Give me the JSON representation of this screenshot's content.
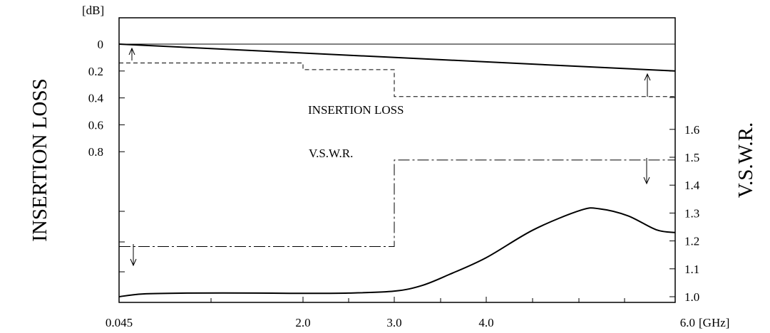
{
  "chart_data": {
    "type": "line",
    "left_axis": {
      "title": "INSERTION LOSS",
      "unit": "[dB]",
      "range": [
        0,
        0.8
      ],
      "ticks": [
        {
          "value": 0,
          "label": "0"
        },
        {
          "value": 0.2,
          "label": "0.2"
        },
        {
          "value": 0.4,
          "label": "0.4"
        },
        {
          "value": 0.6,
          "label": "0.6"
        },
        {
          "value": 0.8,
          "label": "0.8"
        }
      ]
    },
    "right_axis": {
      "title": "V.S.W.R.",
      "range": [
        1.0,
        1.6
      ],
      "ticks": [
        {
          "value": 1.6,
          "label": "1.6"
        },
        {
          "value": 1.5,
          "label": "1.5"
        },
        {
          "value": 1.4,
          "label": "1.4"
        },
        {
          "value": 1.3,
          "label": "1.3"
        },
        {
          "value": 1.2,
          "label": "1.2"
        },
        {
          "value": 1.1,
          "label": "1.1"
        },
        {
          "value": 1.0,
          "label": "1.0"
        }
      ]
    },
    "x_axis": {
      "unit": "[GHz]",
      "range": [
        0.045,
        6.0
      ],
      "ticks": [
        {
          "value": 0.045,
          "label": "0.045"
        },
        {
          "value": 2.0,
          "label": "2.0"
        },
        {
          "value": 3.0,
          "label": "3.0"
        },
        {
          "value": 4.0,
          "label": "4.0"
        },
        {
          "value": 6.0,
          "label": "6.0"
        }
      ]
    },
    "labels": {
      "insertion_loss": "INSERTION LOSS",
      "vswr": "V.S.W.R."
    },
    "series": [
      {
        "axis": "left",
        "style": "solid",
        "x": [
          0.045,
          6.0
        ],
        "y": [
          0.0,
          0.2
        ]
      },
      {
        "axis": "left",
        "style": "dashed-limit",
        "x": [
          0.045,
          2.0,
          2.0,
          3.0,
          3.0,
          6.0
        ],
        "y": [
          0.14,
          0.14,
          0.19,
          0.19,
          0.39,
          0.39
        ]
      },
      {
        "axis": "right",
        "style": "solid",
        "x": [
          0.045,
          0.3,
          0.8,
          1.5,
          2.0,
          2.5,
          3.0,
          3.3,
          3.6,
          4.0,
          4.5,
          5.0,
          5.2,
          5.5,
          5.8,
          6.0
        ],
        "y": [
          1.0,
          1.01,
          1.013,
          1.013,
          1.012,
          1.013,
          1.02,
          1.04,
          1.08,
          1.14,
          1.24,
          1.31,
          1.315,
          1.29,
          1.24,
          1.23
        ]
      },
      {
        "axis": "right",
        "style": "dashdot-limit",
        "x": [
          0.045,
          3.0,
          3.0,
          6.0
        ],
        "y": [
          1.18,
          1.18,
          1.49,
          1.49
        ]
      }
    ]
  }
}
